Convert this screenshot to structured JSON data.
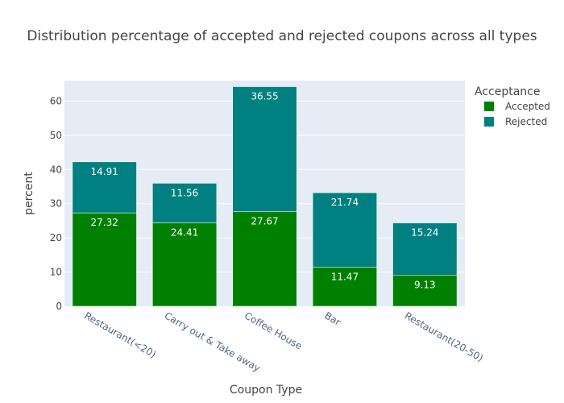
{
  "chart_data": {
    "type": "bar",
    "stacked": true,
    "title": "Distribution percentage of accepted and rejected coupons across all types",
    "xlabel": "Coupon Type",
    "ylabel": "percent",
    "ylim": [
      0,
      66
    ],
    "yticks": [
      0,
      10,
      20,
      30,
      40,
      50,
      60
    ],
    "grid": true,
    "legend_position": "top-right",
    "legend_title": "Acceptance",
    "categories": [
      "Restaurant(<20)",
      "Carry out & Take away",
      "Coffee House",
      "Bar",
      "Restaurant(20-50)"
    ],
    "series": [
      {
        "name": "Accepted",
        "color": "#008000",
        "values": [
          27.32,
          24.41,
          27.67,
          11.47,
          9.13
        ]
      },
      {
        "name": "Rejected",
        "color": "#008080",
        "values": [
          14.91,
          11.56,
          36.55,
          21.74,
          15.24
        ]
      }
    ],
    "plot_bgcolor": "#e5ecf6"
  }
}
